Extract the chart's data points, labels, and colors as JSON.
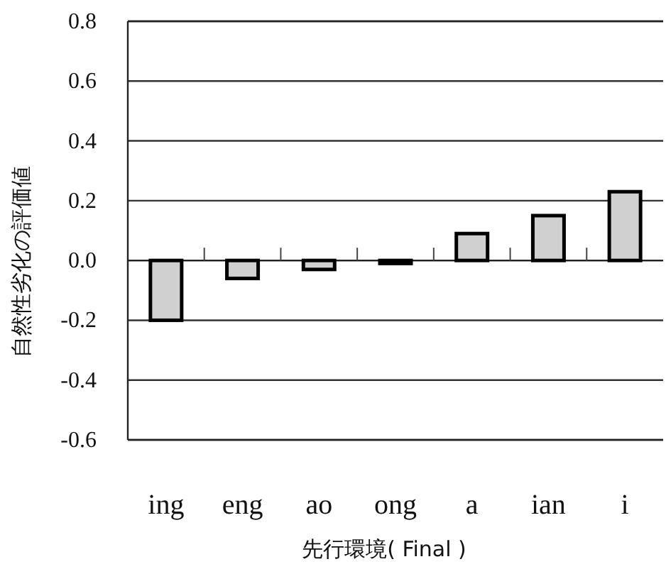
{
  "chart_data": {
    "type": "bar",
    "xlabel": "先行環境( Final )",
    "ylabel": "自然性劣化の評価値",
    "categories": [
      "ing",
      "eng",
      "ao",
      "ong",
      "a",
      "ian",
      "i"
    ],
    "values": [
      -0.2,
      -0.06,
      -0.03,
      -0.01,
      0.09,
      0.15,
      0.23
    ],
    "color": "#d0d0d0",
    "ylim": [
      -0.6,
      0.8
    ],
    "yticks": [
      -0.6,
      -0.4,
      -0.2,
      {
        "value": 0,
        "label": "0.0"
      },
      0.2,
      0.4,
      0.6,
      0.8
    ],
    "grid": "y"
  }
}
